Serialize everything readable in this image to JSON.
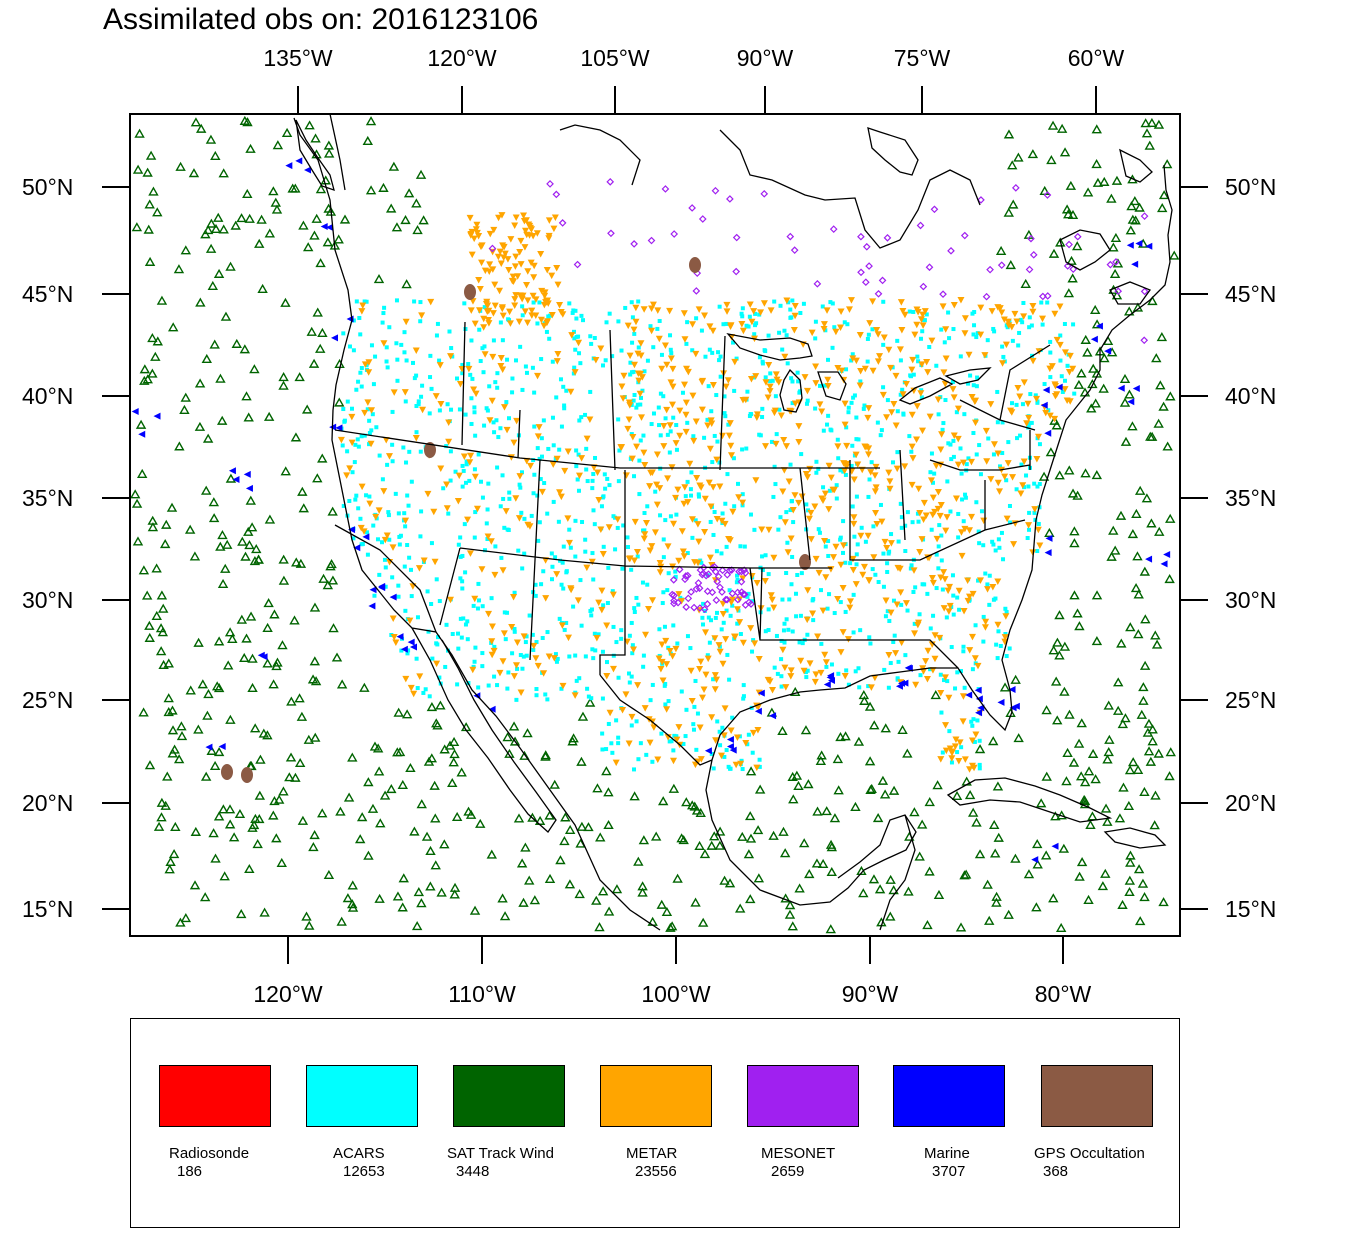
{
  "title": "Assimilated obs on: 2016123106",
  "map": {
    "top_ticks": [
      "135°W",
      "120°W",
      "105°W",
      "90°W",
      "75°W",
      "60°W"
    ],
    "bottom_ticks": [
      "120°W",
      "110°W",
      "100°W",
      "90°W",
      "80°W"
    ],
    "left_ticks": [
      "50°N",
      "45°N",
      "40°N",
      "35°N",
      "30°N",
      "25°N",
      "20°N",
      "15°N"
    ],
    "right_ticks": [
      "50°N",
      "45°N",
      "40°N",
      "35°N",
      "30°N",
      "25°N",
      "20°N",
      "15°N"
    ],
    "land_outline_color": "#000000",
    "background": "#ffffff"
  },
  "legend": [
    {
      "name": "Radiosonde",
      "count": "186",
      "color": "#ff0000"
    },
    {
      "name": "ACARS",
      "count": "12653",
      "color": "#00ffff"
    },
    {
      "name": "SAT Track Wind",
      "count": "3448",
      "color": "#006400"
    },
    {
      "name": "METAR",
      "count": "23556",
      "color": "#ffa500"
    },
    {
      "name": "MESONET",
      "count": "2659",
      "color": "#a020f0"
    },
    {
      "name": "Marine",
      "count": "3707",
      "color": "#0000ff"
    },
    {
      "name": "GPS Occultation",
      "count": "368",
      "color": "#8b5a44"
    }
  ]
}
